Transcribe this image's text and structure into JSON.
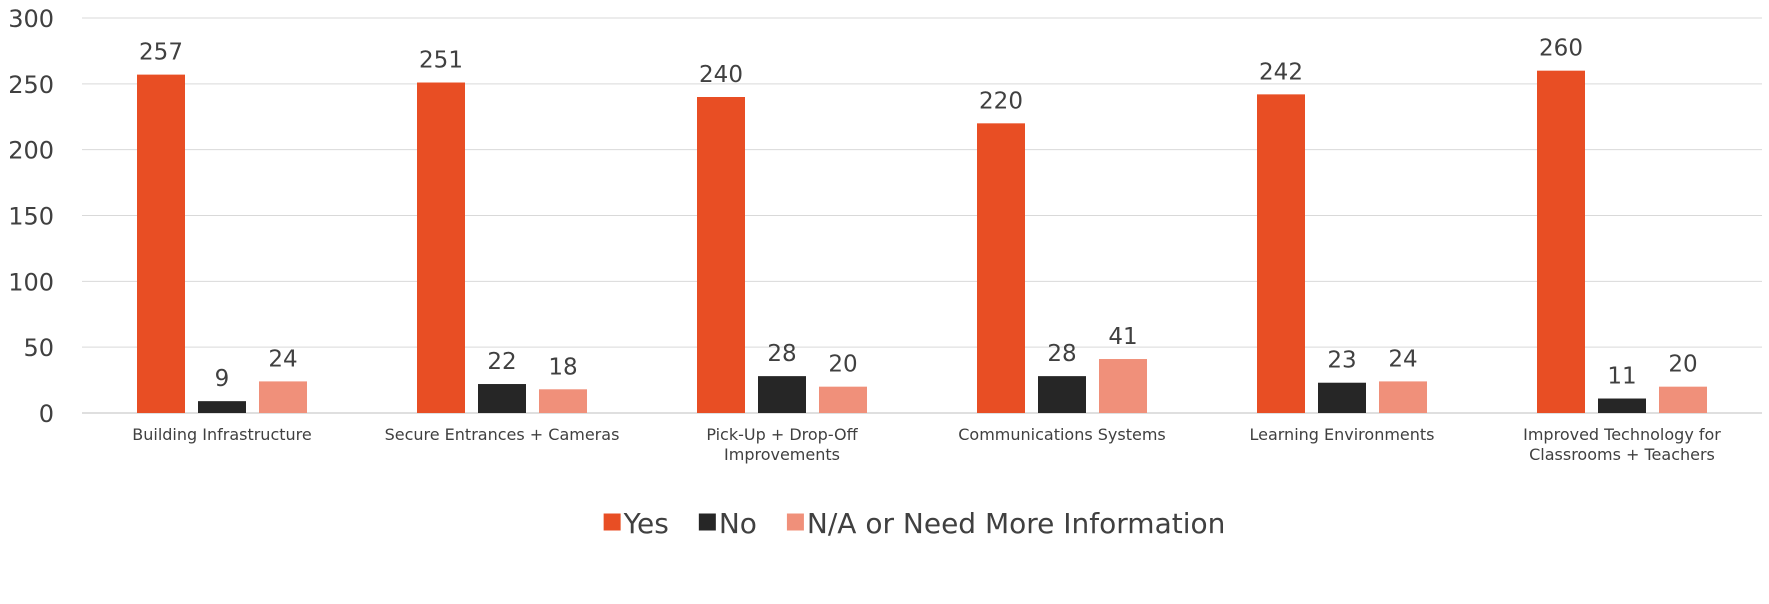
{
  "chart_data": {
    "type": "bar",
    "title": "",
    "xlabel": "",
    "ylabel": "",
    "ylim": [
      0,
      300
    ],
    "yticks": [
      0,
      50,
      100,
      150,
      200,
      250,
      300
    ],
    "grid": true,
    "legend_position": "bottom",
    "categories": [
      [
        "Building Infrastructure"
      ],
      [
        "Secure Entrances + Cameras"
      ],
      [
        "Pick-Up + Drop-Off",
        "Improvements"
      ],
      [
        "Communications Systems"
      ],
      [
        "Learning Environments"
      ],
      [
        "Improved Technology for",
        "Classrooms + Teachers"
      ]
    ],
    "series": [
      {
        "name": "Yes",
        "color": "#E84E24",
        "values": [
          257,
          251,
          240,
          220,
          242,
          260
        ]
      },
      {
        "name": "No",
        "color": "#262626",
        "values": [
          9,
          22,
          28,
          28,
          23,
          11
        ]
      },
      {
        "name": "N/A or Need More Information",
        "color": "#F0907A",
        "values": [
          24,
          18,
          20,
          41,
          24,
          20
        ]
      }
    ]
  }
}
